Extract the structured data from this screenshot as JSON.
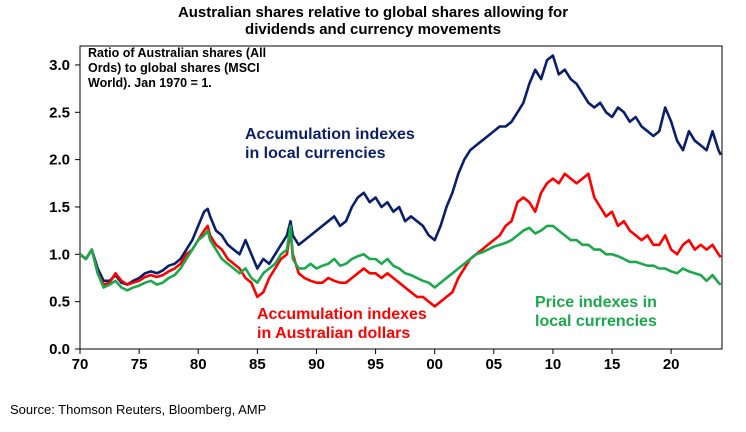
{
  "title_line1": "Australian shares relative to global shares allowing for",
  "title_line2": "dividends and currency movements",
  "note": "Ratio of Australian shares (All Ords) to global shares (MSCI World). Jan 1970 = 1.",
  "source": "Source: Thomson Reuters, Bloomberg, AMP",
  "colors": {
    "blue": "#0a1f6b",
    "red": "#ff0000",
    "green": "#1aa84a"
  },
  "chart_data": {
    "type": "line",
    "title": "Australian shares relative to global shares allowing for dividends and currency movements",
    "xlabel": "",
    "ylabel": "",
    "xlim": [
      1970,
      2024.3
    ],
    "ylim": [
      0,
      3.2
    ],
    "xticks": [
      "70",
      "75",
      "80",
      "85",
      "90",
      "95",
      "00",
      "05",
      "10",
      "15",
      "20"
    ],
    "xtick_values": [
      1970,
      1975,
      1980,
      1985,
      1990,
      1995,
      2000,
      2005,
      2010,
      2015,
      2020
    ],
    "yticks": [
      "0.0",
      "0.5",
      "1.0",
      "1.5",
      "2.0",
      "2.5",
      "3.0"
    ],
    "ytick_values": [
      0,
      0.5,
      1.0,
      1.5,
      2.0,
      2.5,
      3.0
    ],
    "legend": "inline labels",
    "series": [
      {
        "name": "Accumulation indexes in local currencies",
        "color": "#0a1f6b",
        "x": [
          1970,
          1970.5,
          1971,
          1971.5,
          1972,
          1972.5,
          1973,
          1973.5,
          1974,
          1974.5,
          1975,
          1975.5,
          1976,
          1976.5,
          1977,
          1977.5,
          1978,
          1978.5,
          1979,
          1979.5,
          1980,
          1980.5,
          1980.8,
          1981,
          1981.5,
          1982,
          1982.5,
          1983,
          1983.5,
          1984,
          1984.5,
          1985,
          1985.5,
          1986,
          1986.5,
          1987,
          1987.5,
          1987.8,
          1988,
          1988.5,
          1989,
          1989.5,
          1990,
          1990.5,
          1991,
          1991.5,
          1992,
          1992.5,
          1993,
          1993.5,
          1994,
          1994.5,
          1995,
          1995.5,
          1996,
          1996.5,
          1997,
          1997.5,
          1998,
          1998.5,
          1999,
          1999.5,
          2000,
          2000.5,
          2001,
          2001.5,
          2002,
          2002.5,
          2003,
          2003.5,
          2004,
          2004.5,
          2005,
          2005.5,
          2006,
          2006.5,
          2007,
          2007.5,
          2008,
          2008.5,
          2009,
          2009.5,
          2010,
          2010.5,
          2011,
          2011.5,
          2012,
          2012.5,
          2013,
          2013.5,
          2014,
          2014.5,
          2015,
          2015.5,
          2016,
          2016.5,
          2017,
          2017.5,
          2018,
          2018.5,
          2019,
          2019.5,
          2020,
          2020.5,
          2021,
          2021.5,
          2022,
          2022.5,
          2023,
          2023.5,
          2024,
          2024.2
        ],
        "y": [
          1.0,
          0.95,
          1.05,
          0.85,
          0.72,
          0.72,
          0.78,
          0.7,
          0.68,
          0.72,
          0.75,
          0.8,
          0.82,
          0.8,
          0.83,
          0.88,
          0.9,
          0.95,
          1.05,
          1.15,
          1.3,
          1.45,
          1.48,
          1.4,
          1.25,
          1.2,
          1.1,
          1.05,
          1.0,
          1.15,
          1.0,
          0.85,
          0.95,
          0.9,
          1.0,
          1.1,
          1.2,
          1.35,
          1.2,
          1.1,
          1.15,
          1.2,
          1.25,
          1.3,
          1.35,
          1.4,
          1.3,
          1.35,
          1.5,
          1.6,
          1.65,
          1.55,
          1.6,
          1.5,
          1.55,
          1.45,
          1.5,
          1.35,
          1.4,
          1.35,
          1.3,
          1.2,
          1.15,
          1.3,
          1.5,
          1.65,
          1.85,
          2.0,
          2.1,
          2.15,
          2.2,
          2.25,
          2.3,
          2.35,
          2.35,
          2.4,
          2.5,
          2.6,
          2.8,
          2.95,
          2.85,
          3.05,
          3.1,
          2.9,
          2.95,
          2.85,
          2.8,
          2.7,
          2.6,
          2.55,
          2.6,
          2.5,
          2.45,
          2.55,
          2.5,
          2.4,
          2.45,
          2.35,
          2.3,
          2.25,
          2.3,
          2.55,
          2.4,
          2.2,
          2.1,
          2.3,
          2.2,
          2.15,
          2.1,
          2.3,
          2.1,
          2.05
        ]
      },
      {
        "name": "Accumulation indexes in Australian dollars",
        "color": "#ff0000",
        "x": [
          1970,
          1970.5,
          1971,
          1971.5,
          1972,
          1972.5,
          1973,
          1973.5,
          1974,
          1974.5,
          1975,
          1975.5,
          1976,
          1976.5,
          1977,
          1977.5,
          1978,
          1978.5,
          1979,
          1979.5,
          1980,
          1980.5,
          1980.8,
          1981,
          1981.5,
          1982,
          1982.5,
          1983,
          1983.5,
          1984,
          1984.5,
          1985,
          1985.5,
          1986,
          1986.5,
          1987,
          1987.5,
          1987.8,
          1988,
          1988.5,
          1989,
          1989.5,
          1990,
          1990.5,
          1991,
          1991.5,
          1992,
          1992.5,
          1993,
          1993.5,
          1994,
          1994.5,
          1995,
          1995.5,
          1996,
          1996.5,
          1997,
          1997.5,
          1998,
          1998.5,
          1999,
          1999.5,
          2000,
          2000.5,
          2001,
          2001.5,
          2002,
          2002.5,
          2003,
          2003.5,
          2004,
          2004.5,
          2005,
          2005.5,
          2006,
          2006.5,
          2007,
          2007.5,
          2008,
          2008.5,
          2009,
          2009.5,
          2010,
          2010.5,
          2011,
          2011.5,
          2012,
          2012.5,
          2013,
          2013.5,
          2014,
          2014.5,
          2015,
          2015.5,
          2016,
          2016.5,
          2017,
          2017.5,
          2018,
          2018.5,
          2019,
          2019.5,
          2020,
          2020.5,
          2021,
          2021.5,
          2022,
          2022.5,
          2023,
          2023.5,
          2024,
          2024.2
        ],
        "y": [
          1.0,
          0.95,
          1.05,
          0.8,
          0.68,
          0.7,
          0.8,
          0.72,
          0.68,
          0.7,
          0.72,
          0.76,
          0.78,
          0.76,
          0.78,
          0.82,
          0.85,
          0.9,
          1.0,
          1.05,
          1.15,
          1.25,
          1.3,
          1.2,
          1.1,
          1.05,
          0.95,
          0.9,
          0.85,
          0.75,
          0.7,
          0.55,
          0.6,
          0.75,
          0.85,
          0.95,
          1.0,
          1.25,
          1.0,
          0.8,
          0.75,
          0.72,
          0.7,
          0.7,
          0.75,
          0.72,
          0.7,
          0.7,
          0.75,
          0.8,
          0.85,
          0.8,
          0.8,
          0.75,
          0.8,
          0.75,
          0.7,
          0.65,
          0.6,
          0.55,
          0.55,
          0.5,
          0.45,
          0.5,
          0.55,
          0.6,
          0.75,
          0.85,
          0.95,
          1.0,
          1.05,
          1.1,
          1.15,
          1.2,
          1.3,
          1.35,
          1.55,
          1.6,
          1.55,
          1.45,
          1.65,
          1.75,
          1.8,
          1.75,
          1.85,
          1.8,
          1.75,
          1.8,
          1.85,
          1.6,
          1.5,
          1.4,
          1.45,
          1.3,
          1.35,
          1.25,
          1.2,
          1.15,
          1.2,
          1.1,
          1.1,
          1.2,
          1.05,
          1.0,
          1.1,
          1.15,
          1.05,
          1.1,
          1.05,
          1.1,
          1.0,
          0.97
        ]
      },
      {
        "name": "Price indexes in local currencies",
        "color": "#1aa84a",
        "x": [
          1970,
          1970.5,
          1971,
          1971.5,
          1972,
          1972.5,
          1973,
          1973.5,
          1974,
          1974.5,
          1975,
          1975.5,
          1976,
          1976.5,
          1977,
          1977.5,
          1978,
          1978.5,
          1979,
          1979.5,
          1980,
          1980.5,
          1980.8,
          1981,
          1981.5,
          1982,
          1982.5,
          1983,
          1983.5,
          1984,
          1984.5,
          1985,
          1985.5,
          1986,
          1986.5,
          1987,
          1987.5,
          1987.8,
          1988,
          1988.5,
          1989,
          1989.5,
          1990,
          1990.5,
          1991,
          1991.5,
          1992,
          1992.5,
          1993,
          1993.5,
          1994,
          1994.5,
          1995,
          1995.5,
          1996,
          1996.5,
          1997,
          1997.5,
          1998,
          1998.5,
          1999,
          1999.5,
          2000,
          2000.5,
          2001,
          2001.5,
          2002,
          2002.5,
          2003,
          2003.5,
          2004,
          2004.5,
          2005,
          2005.5,
          2006,
          2006.5,
          2007,
          2007.5,
          2008,
          2008.5,
          2009,
          2009.5,
          2010,
          2010.5,
          2011,
          2011.5,
          2012,
          2012.5,
          2013,
          2013.5,
          2014,
          2014.5,
          2015,
          2015.5,
          2016,
          2016.5,
          2017,
          2017.5,
          2018,
          2018.5,
          2019,
          2019.5,
          2020,
          2020.5,
          2021,
          2021.5,
          2022,
          2022.5,
          2023,
          2023.5,
          2024,
          2024.2
        ],
        "y": [
          1.0,
          0.95,
          1.05,
          0.8,
          0.65,
          0.68,
          0.72,
          0.65,
          0.62,
          0.65,
          0.67,
          0.7,
          0.72,
          0.68,
          0.7,
          0.75,
          0.78,
          0.85,
          0.95,
          1.05,
          1.15,
          1.2,
          1.25,
          1.15,
          1.05,
          0.95,
          0.9,
          0.85,
          0.8,
          0.85,
          0.75,
          0.7,
          0.8,
          0.85,
          0.9,
          1.0,
          1.05,
          1.3,
          0.95,
          0.85,
          0.85,
          0.9,
          0.85,
          0.88,
          0.9,
          0.95,
          0.88,
          0.9,
          0.95,
          0.98,
          1.0,
          0.95,
          0.95,
          0.9,
          0.95,
          0.88,
          0.85,
          0.8,
          0.78,
          0.75,
          0.72,
          0.7,
          0.65,
          0.7,
          0.75,
          0.8,
          0.85,
          0.9,
          0.95,
          1.0,
          1.02,
          1.05,
          1.08,
          1.1,
          1.12,
          1.15,
          1.2,
          1.25,
          1.28,
          1.22,
          1.25,
          1.3,
          1.3,
          1.25,
          1.2,
          1.15,
          1.15,
          1.1,
          1.1,
          1.05,
          1.05,
          1.0,
          1.0,
          0.98,
          0.95,
          0.92,
          0.92,
          0.9,
          0.88,
          0.88,
          0.85,
          0.85,
          0.82,
          0.8,
          0.85,
          0.82,
          0.8,
          0.78,
          0.72,
          0.78,
          0.7,
          0.68
        ]
      }
    ]
  },
  "labels": {
    "blue_l1": "Accumulation indexes",
    "blue_l2": "in local currencies",
    "red_l1": "Accumulation indexes",
    "red_l2": "in Australian dollars",
    "green_l1": "Price indexes in",
    "green_l2": "local currencies"
  }
}
